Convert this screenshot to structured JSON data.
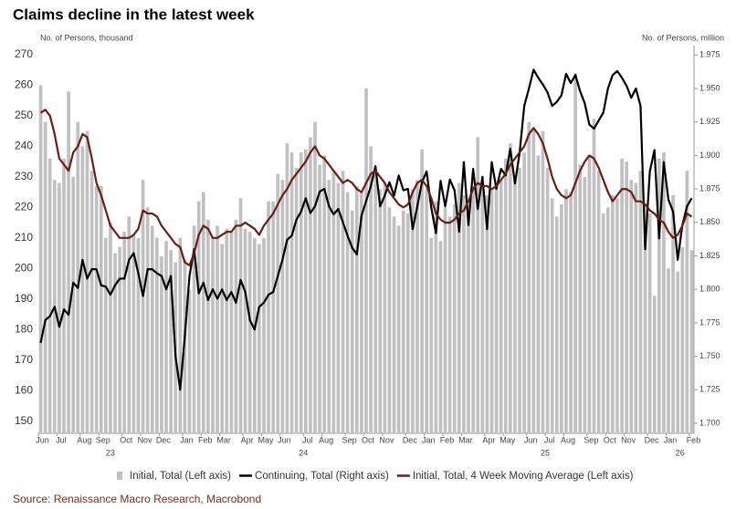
{
  "chart_data": {
    "type": "bar",
    "title": "Claims decline in the latest week",
    "ylabel": "No. of Persons, thousand",
    "y2label": "No. of Persons, million",
    "source": "Source: Renaissance Macro Research, Macrobond",
    "categories": [
      "Jun",
      null,
      null,
      null,
      "Jul",
      null,
      null,
      null,
      null,
      "Aug",
      null,
      null,
      null,
      "Sep",
      null,
      null,
      null,
      null,
      "Oct",
      null,
      null,
      null,
      "Nov",
      null,
      null,
      null,
      "Dec",
      null,
      null,
      null,
      null,
      "Jan",
      null,
      null,
      null,
      "Feb",
      null,
      null,
      null,
      "Mar",
      null,
      null,
      null,
      null,
      "Apr",
      null,
      null,
      null,
      "May",
      null,
      null,
      null,
      "Jun",
      null,
      null,
      null,
      null,
      "Jul",
      null,
      null,
      null,
      "Aug",
      null,
      null,
      null,
      null,
      "Sep",
      null,
      null,
      null,
      "Oct",
      null,
      null,
      null,
      "Nov",
      null,
      null,
      null,
      null,
      "Dec",
      null,
      null,
      null,
      "Jan",
      null,
      null,
      null,
      "Feb",
      null,
      null,
      null,
      "Mar",
      null,
      null,
      null,
      null,
      "Apr",
      null,
      null,
      null,
      "May",
      null,
      null,
      null,
      null,
      "Jun",
      null,
      null,
      null,
      "Jul",
      null,
      null,
      null,
      "Aug",
      null,
      null,
      null,
      null,
      "Sep",
      null,
      null,
      null,
      "Oct",
      null,
      null,
      null,
      "Nov",
      null,
      null,
      null,
      null,
      "Dec",
      null,
      null,
      null,
      "Jan",
      null,
      null,
      null,
      null,
      "Feb"
    ],
    "years": [
      "23",
      "24",
      "25",
      "26"
    ],
    "series": [
      {
        "name": "Initial, Total (Left axis)",
        "type": "bar",
        "color": "#c0c0c0",
        "values": [
          260,
          248,
          236,
          229,
          228,
          236,
          258,
          230,
          248,
          240,
          245,
          232,
          227,
          227,
          210,
          215,
          205,
          207,
          212,
          217,
          211,
          210,
          229,
          220,
          214,
          210,
          204,
          209,
          206,
          202,
          210,
          203,
          193,
          214,
          222,
          225,
          216,
          210,
          214,
          208,
          213,
          212,
          216,
          223,
          213,
          212,
          210,
          208,
          210,
          222,
          222,
          231,
          229,
          241,
          238,
          233,
          238,
          239,
          243,
          248,
          234,
          237,
          229,
          232,
          228,
          232,
          225,
          219,
          227,
          225,
          259,
          240,
          231,
          226,
          228,
          220,
          217,
          214,
          219,
          218,
          226,
          229,
          239,
          226,
          210,
          222,
          209,
          220,
          217,
          221,
          228,
          224,
          221,
          227,
          243,
          227,
          224,
          226,
          227,
          229,
          236,
          241,
          230,
          233,
          238,
          248,
          246,
          237,
          245,
          233,
          223,
          217,
          221,
          226,
          225,
          264,
          234,
          230,
          237,
          249,
          232,
          218,
          220,
          224,
          223,
          236,
          235,
          229,
          228,
          232,
          221,
          218,
          191,
          236,
          238,
          200,
          224,
          199,
          207,
          232,
          206
        ]
      },
      {
        "name": "Continuing, Total (Right axis)",
        "type": "line",
        "axis": "y2",
        "color": "#000000",
        "values": [
          1.76,
          1.777,
          1.78,
          1.787,
          1.772,
          1.785,
          1.781,
          1.805,
          1.801,
          1.822,
          1.808,
          1.815,
          1.815,
          1.803,
          1.802,
          1.796,
          1.803,
          1.808,
          1.808,
          1.822,
          1.827,
          1.812,
          1.795,
          1.815,
          1.815,
          1.812,
          1.81,
          1.8,
          1.81,
          1.75,
          1.725,
          1.765,
          1.81,
          1.83,
          1.797,
          1.805,
          1.792,
          1.8,
          1.793,
          1.8,
          1.792,
          1.798,
          1.79,
          1.807,
          1.798,
          1.777,
          1.77,
          1.787,
          1.79,
          1.796,
          1.798,
          1.81,
          1.822,
          1.837,
          1.84,
          1.852,
          1.858,
          1.868,
          1.857,
          1.862,
          1.873,
          1.875,
          1.862,
          1.856,
          1.86,
          1.85,
          1.84,
          1.831,
          1.826,
          1.855,
          1.866,
          1.877,
          1.892,
          1.862,
          1.87,
          1.88,
          1.87,
          1.885,
          1.874,
          1.875,
          1.845,
          1.862,
          1.88,
          1.888,
          1.861,
          1.842,
          1.881,
          1.862,
          1.882,
          1.874,
          1.843,
          1.895,
          1.848,
          1.89,
          1.86,
          1.884,
          1.845,
          1.895,
          1.875,
          1.89,
          1.885,
          1.905,
          1.879,
          1.902,
          1.937,
          1.95,
          1.964,
          1.958,
          1.953,
          1.947,
          1.937,
          1.94,
          1.945,
          1.961,
          1.954,
          1.96,
          1.948,
          1.939,
          1.923,
          1.92,
          1.926,
          1.932,
          1.95,
          1.96,
          1.963,
          1.958,
          1.952,
          1.943,
          1.95,
          1.937,
          1.83,
          1.888,
          1.904,
          1.838,
          1.895,
          1.867,
          1.858,
          1.822,
          1.848,
          1.862,
          1.868
        ]
      },
      {
        "name": "Initial, Total, 4 Week Moving Average (Left axis)",
        "type": "line",
        "color": "#6b1d14",
        "values": [
          251,
          252,
          250,
          244,
          236,
          234,
          232,
          238,
          240,
          244,
          243,
          236,
          228,
          224,
          219,
          214,
          212,
          210,
          210,
          210,
          211,
          213,
          219,
          218,
          218,
          217,
          214,
          212,
          210,
          208,
          207,
          202,
          201,
          205,
          211,
          214,
          213,
          210,
          210,
          211,
          212,
          212,
          214,
          214,
          215,
          214,
          213,
          211,
          214,
          216,
          218,
          221,
          224,
          226,
          229,
          231,
          233,
          235,
          238,
          240,
          237,
          236,
          234,
          232,
          230,
          228,
          229,
          228,
          226,
          225,
          228,
          231,
          232,
          230,
          228,
          225,
          223,
          221,
          220,
          221,
          225,
          228,
          229,
          227,
          223,
          218,
          216,
          215,
          215,
          216,
          218,
          219,
          222,
          226,
          228,
          227,
          227,
          226,
          227,
          229,
          231,
          234,
          236,
          238,
          240,
          244,
          246,
          244,
          241,
          236,
          230,
          226,
          224,
          223,
          224,
          228,
          232,
          235,
          237,
          236,
          233,
          229,
          225,
          222,
          224,
          226,
          226,
          225,
          222,
          222,
          221,
          219,
          218,
          216,
          215,
          212,
          210,
          211,
          214,
          218,
          217
        ]
      }
    ],
    "ylim": [
      146,
      273
    ],
    "yticks": [
      150,
      160,
      170,
      180,
      190,
      200,
      210,
      220,
      230,
      240,
      250,
      260,
      270
    ],
    "y2lim": [
      1.6925,
      1.982
    ],
    "y2ticks": [
      {
        "value": 1.7,
        "label": "1.700"
      },
      1.725,
      {
        "value": 1.75,
        "label": "1.750"
      },
      1.775,
      {
        "value": 1.8,
        "label": "1.800"
      },
      1.825,
      {
        "value": 1.85,
        "label": "1.850"
      },
      1.875,
      {
        "value": 1.9,
        "label": "1.900"
      },
      1.925,
      {
        "value": 1.95,
        "label": "1.950"
      },
      1.975
    ],
    "grid": false,
    "legend": "bottom"
  }
}
